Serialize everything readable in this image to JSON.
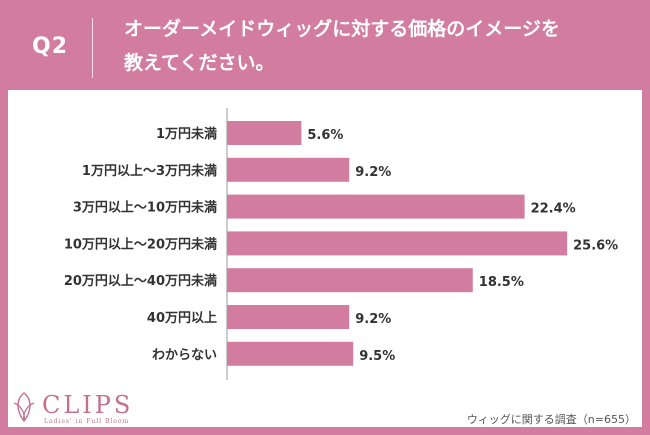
{
  "header": {
    "q_label": "Q2",
    "title_line1": "オーダーメイドウィッグに対する価格のイメージを",
    "title_line2": "教えてください。"
  },
  "chart_data": {
    "type": "bar",
    "orientation": "horizontal",
    "categories": [
      "1万円未満",
      "1万円以上～3万円未満",
      "3万円以上～10万円未満",
      "10万円以上～20万円未満",
      "20万円以上～40万円未満",
      "40万円以上",
      "わからない"
    ],
    "values": [
      5.6,
      9.2,
      22.4,
      25.6,
      18.5,
      9.2,
      9.5
    ],
    "value_labels": [
      "5.6%",
      "9.2%",
      "22.4%",
      "25.6%",
      "18.5%",
      "9.2%",
      "9.5%"
    ],
    "unit": "%",
    "bar_color": "#d27d9f",
    "grid": false,
    "xlim": [
      0,
      28
    ]
  },
  "footer": {
    "source": "ウィッグに関する調査（n=655）"
  },
  "logo": {
    "name": "CLIPS",
    "tagline": "Ladies' in Full Bloom"
  }
}
